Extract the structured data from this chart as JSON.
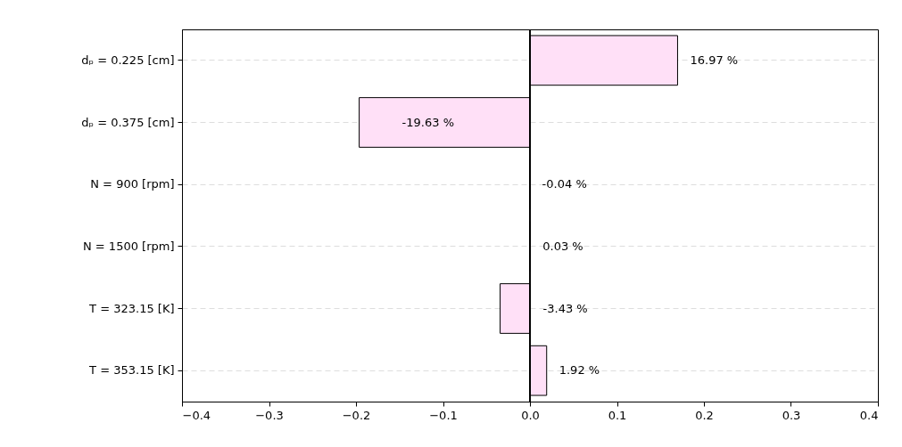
{
  "chart_data": {
    "type": "bar",
    "orientation": "horizontal",
    "categories": [
      "dₚ = 0.225 [cm]",
      "dₚ = 0.375 [cm]",
      "N = 900 [rpm]",
      "N = 1500 [rpm]",
      "T = 323.15 [K]",
      "T = 353.15 [K]"
    ],
    "values": [
      0.1697,
      -0.1963,
      -0.0004,
      0.0003,
      -0.0343,
      0.0192
    ],
    "value_labels": [
      "16.97 %",
      "-19.63 %",
      "-0.04 %",
      "0.03 %",
      "-3.43 %",
      "1.92 %"
    ],
    "color": "#ffe0f7",
    "xlim": [
      -0.4,
      0.4
    ],
    "xticks": [
      -0.4,
      -0.3,
      -0.2,
      -0.1,
      {
        "value": 0,
        "label": "0.0"
      },
      0.1,
      0.2,
      0.3,
      0.4
    ],
    "grid": "y",
    "ref_lines": [
      {
        "axis": "x",
        "value": 0,
        "color": "#000000"
      }
    ]
  }
}
